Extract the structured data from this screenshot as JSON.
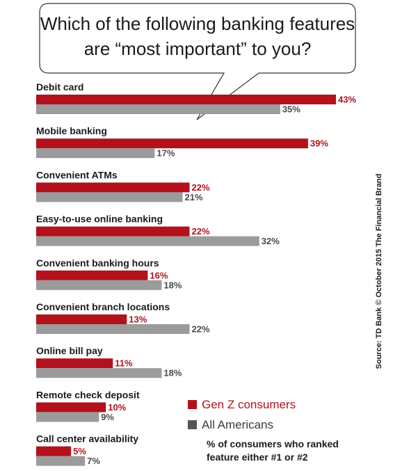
{
  "chart_data": {
    "type": "bar",
    "orientation": "horizontal",
    "title_lines": [
      "Which of the following banking features",
      "are “most important” to you?"
    ],
    "categories": [
      "Debit card",
      "Mobile banking",
      "Convenient ATMs",
      "Easy-to-use online banking",
      "Convenient banking hours",
      "Convenient branch locations",
      "Online bill pay",
      "Remote check deposit",
      "Call center availability"
    ],
    "series": [
      {
        "name": "Gen Z consumers",
        "values": [
          43,
          39,
          22,
          22,
          16,
          13,
          11,
          10,
          5
        ],
        "color": "#b3111c"
      },
      {
        "name": "All Americans",
        "values": [
          35,
          17,
          21,
          32,
          18,
          22,
          18,
          9,
          7
        ],
        "color": "#9b9b9b"
      }
    ],
    "value_suffix": "%",
    "xlim": [
      0,
      43
    ],
    "grid": false,
    "legend_position": "bottom-right",
    "note": [
      "% of consumers who ranked",
      "feature either #1 or #2"
    ],
    "source": "Source: TD Bank © October 2015 The Financial Brand"
  }
}
